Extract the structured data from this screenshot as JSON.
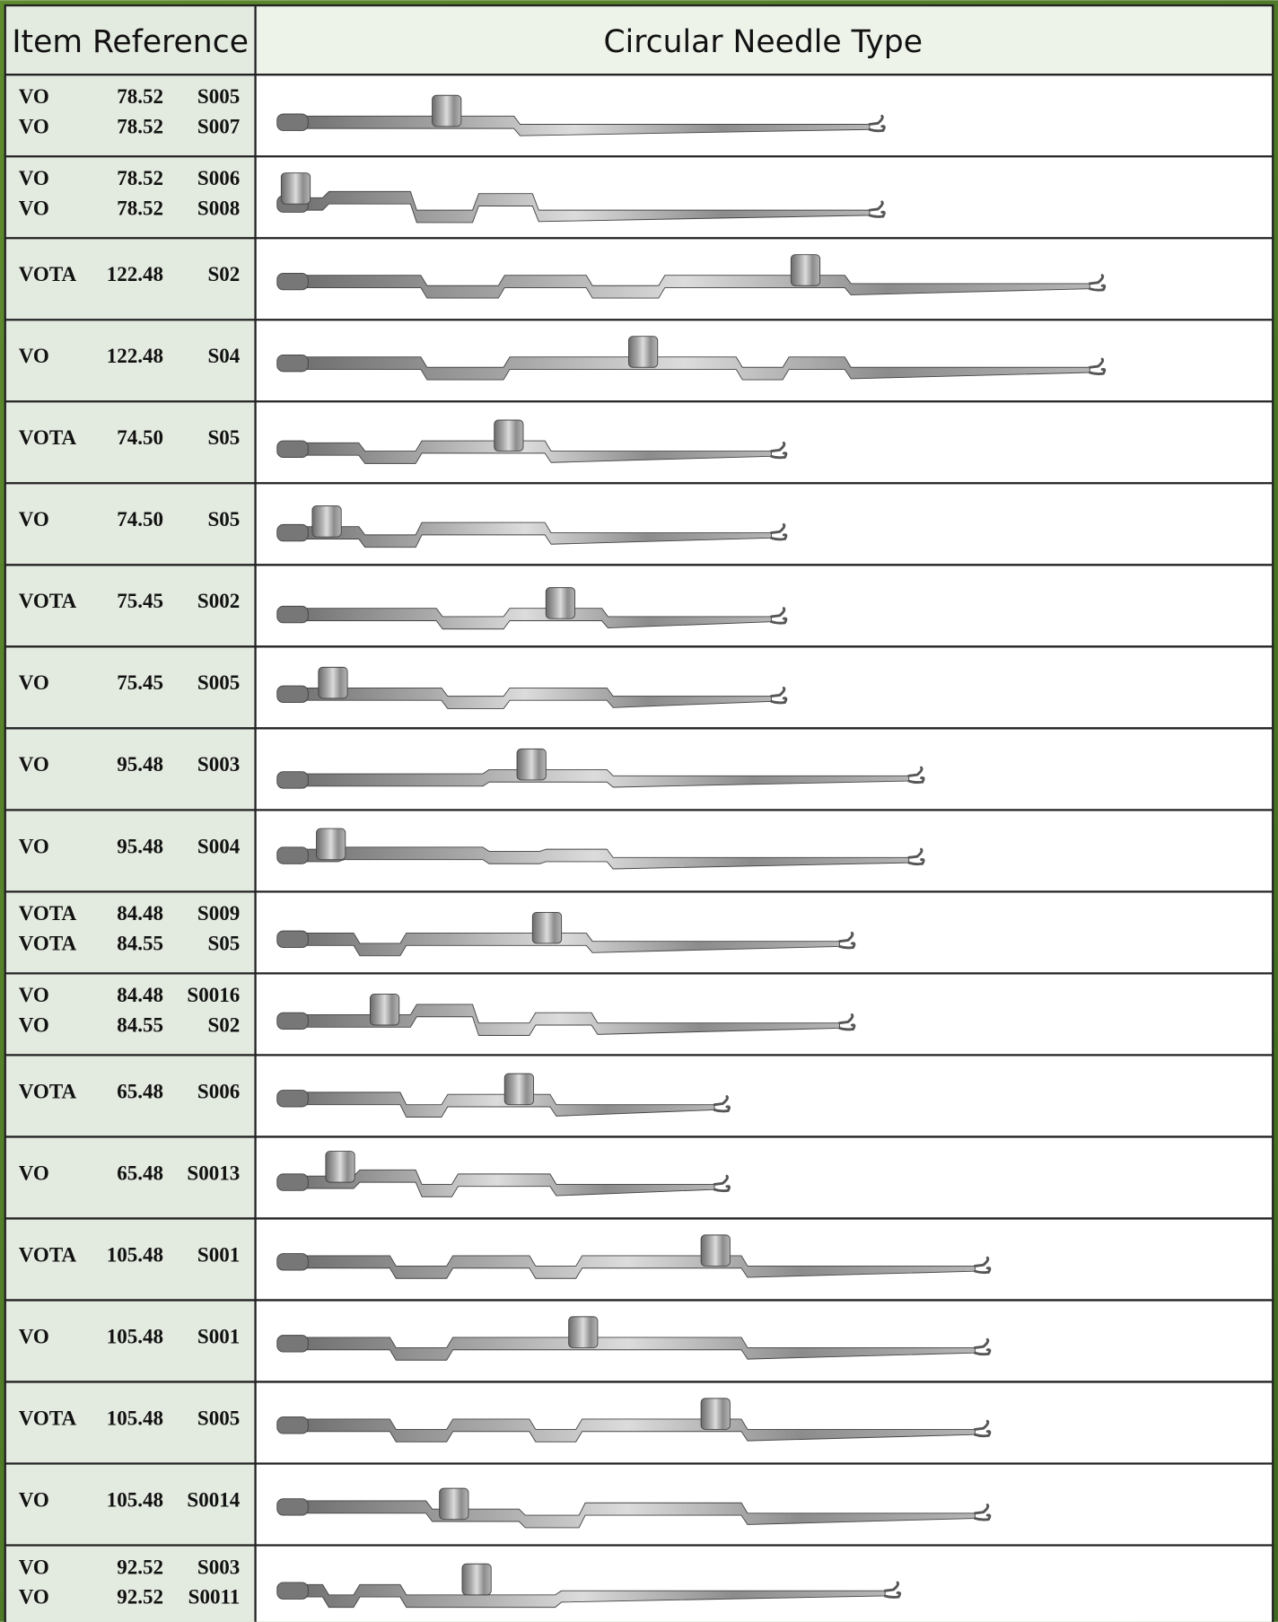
{
  "header": {
    "item_reference": "Item Reference",
    "needle_type": "Circular Needle Type"
  },
  "rows": [
    {
      "lines": [
        [
          "VO",
          "78.52",
          "S005"
        ],
        [
          "VO",
          "78.52",
          "S007"
        ]
      ]
    },
    {
      "lines": [
        [
          "VO",
          "78.52",
          "S006"
        ],
        [
          "VO",
          "78.52",
          "S008"
        ]
      ]
    },
    {
      "lines": [
        [
          "VOTA",
          "122.48",
          "S02"
        ]
      ]
    },
    {
      "lines": [
        [
          "VO",
          "122.48",
          "S04"
        ]
      ]
    },
    {
      "lines": [
        [
          "VOTA",
          "74.50",
          "S05"
        ]
      ]
    },
    {
      "lines": [
        [
          "VO",
          "74.50",
          "S05"
        ]
      ]
    },
    {
      "lines": [
        [
          "VOTA",
          "75.45",
          "S002"
        ]
      ]
    },
    {
      "lines": [
        [
          "VO",
          "75.45",
          "S005"
        ]
      ]
    },
    {
      "lines": [
        [
          "VO",
          "95.48",
          "S003"
        ]
      ]
    },
    {
      "lines": [
        [
          "VO",
          "95.48",
          "S004"
        ]
      ]
    },
    {
      "lines": [
        [
          "VOTA",
          "84.48",
          "S009"
        ],
        [
          "VOTA",
          "84.55",
          "S05"
        ]
      ]
    },
    {
      "lines": [
        [
          "VO",
          "84.48",
          "S0016"
        ],
        [
          "VO",
          "84.55",
          "S02"
        ]
      ]
    },
    {
      "lines": [
        [
          "VOTA",
          "65.48",
          "S006"
        ]
      ]
    },
    {
      "lines": [
        [
          "VO",
          "65.48",
          "S0013"
        ]
      ]
    },
    {
      "lines": [
        [
          "VOTA",
          "105.48",
          "S001"
        ]
      ]
    },
    {
      "lines": [
        [
          "VO",
          "105.48",
          "S001"
        ]
      ]
    },
    {
      "lines": [
        [
          "VOTA",
          "105.48",
          "S005"
        ]
      ]
    },
    {
      "lines": [
        [
          "VO",
          "105.48",
          "S0014"
        ]
      ]
    },
    {
      "lines": [
        [
          "VO",
          "92.52",
          "S003"
        ],
        [
          "VO",
          "92.52",
          "S0011"
        ]
      ]
    }
  ]
}
